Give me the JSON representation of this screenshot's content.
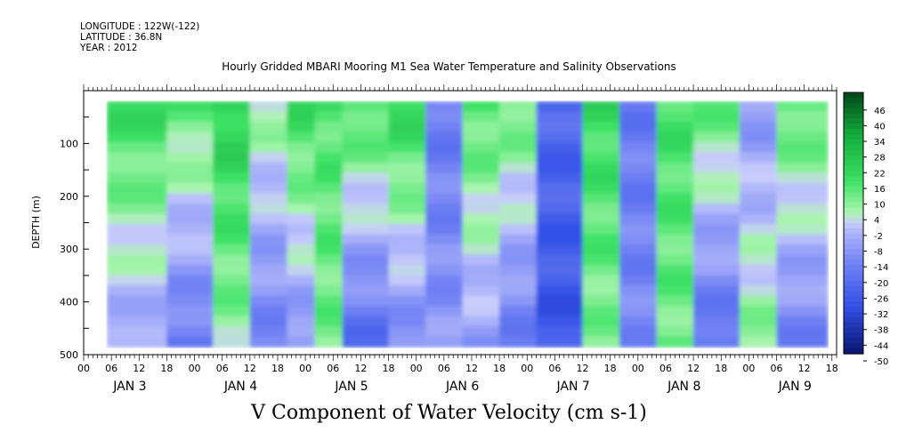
{
  "header": {
    "longitude": "LONGITUDE : 122W(-122)",
    "latitude": "LATITUDE : 36.8N",
    "year": "YEAR : 2012",
    "title": "Hourly Gridded MBARI Mooring M1 Sea Water Temperature and Salinity Observations",
    "variable": "V Component of Water Velocity (cm s-1)"
  },
  "chart_data": {
    "type": "heatmap",
    "title": "Hourly Gridded MBARI Mooring M1 Sea Water Temperature and Salinity Observations",
    "subtitle": "V Component of Water Velocity (cm s-1)",
    "ylabel": "DEPTH (m)",
    "xlabel": "",
    "y_inverted": true,
    "ylim": [
      500,
      0
    ],
    "y_ticks": [
      100,
      200,
      300,
      400,
      500
    ],
    "x_hour_ticks": [
      "00",
      "06",
      "12",
      "18",
      "00",
      "06",
      "12",
      "18",
      "00",
      "06",
      "12",
      "18",
      "00",
      "06",
      "12",
      "18",
      "00",
      "06",
      "12",
      "18",
      "00",
      "06",
      "12",
      "18",
      "00",
      "06",
      "12",
      "18"
    ],
    "x_day_labels": [
      "JAN 3",
      "JAN 4",
      "JAN 5",
      "JAN 6",
      "JAN 7",
      "JAN 8",
      "JAN 9"
    ],
    "x_range_hours": [
      0,
      163
    ],
    "data_x_range_hours": [
      5,
      161
    ],
    "data_depth_range": [
      20,
      485
    ],
    "colorbar_ticks": [
      46,
      40,
      34,
      28,
      22,
      16,
      10,
      4,
      -2,
      -8,
      -14,
      -20,
      -26,
      -32,
      -38,
      -44,
      -50
    ],
    "colorbar_range": [
      -50,
      50
    ],
    "colors": {
      "strong_positive": "#004d1a",
      "positive": "#22e05a",
      "weak_positive": "#a8f0b0",
      "weak_negative": "#b4b8f8",
      "negative": "#6677ee",
      "strong_negative": "#0a1a80"
    },
    "bands": [
      {
        "x0": 5,
        "x1": 18,
        "v_top": 18,
        "v_bottom": -8
      },
      {
        "x0": 18,
        "x1": 28,
        "v_top": 12,
        "v_bottom": -18
      },
      {
        "x0": 28,
        "x1": 36,
        "v_top": 22,
        "v_bottom": 6
      },
      {
        "x0": 36,
        "x1": 44,
        "v_top": 6,
        "v_bottom": -16
      },
      {
        "x0": 44,
        "x1": 50,
        "v_top": 18,
        "v_bottom": -12
      },
      {
        "x0": 50,
        "x1": 56,
        "v_top": 14,
        "v_bottom": 10
      },
      {
        "x0": 56,
        "x1": 66,
        "v_top": 16,
        "v_bottom": -22
      },
      {
        "x0": 66,
        "x1": 74,
        "v_top": 20,
        "v_bottom": -14
      },
      {
        "x0": 74,
        "x1": 82,
        "v_top": -18,
        "v_bottom": -10
      },
      {
        "x0": 82,
        "x1": 90,
        "v_top": 14,
        "v_bottom": -8
      },
      {
        "x0": 90,
        "x1": 98,
        "v_top": 12,
        "v_bottom": -18
      },
      {
        "x0": 98,
        "x1": 108,
        "v_top": -24,
        "v_bottom": -30
      },
      {
        "x0": 108,
        "x1": 116,
        "v_top": 18,
        "v_bottom": 8
      },
      {
        "x0": 116,
        "x1": 124,
        "v_top": -18,
        "v_bottom": -14
      },
      {
        "x0": 124,
        "x1": 132,
        "v_top": 16,
        "v_bottom": 10
      },
      {
        "x0": 132,
        "x1": 142,
        "v_top": 12,
        "v_bottom": -22
      },
      {
        "x0": 142,
        "x1": 150,
        "v_top": -10,
        "v_bottom": 8
      },
      {
        "x0": 150,
        "x1": 161,
        "v_top": 14,
        "v_bottom": -16
      }
    ]
  }
}
